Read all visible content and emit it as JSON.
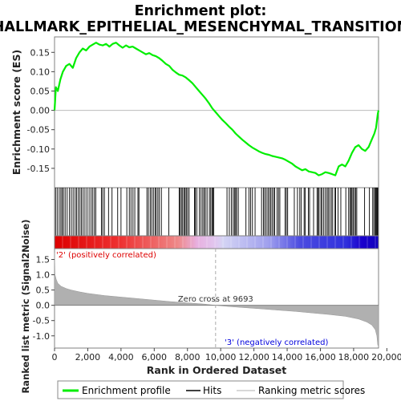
{
  "figure": {
    "title_line1": "Enrichment plot:",
    "title_line2": "HALLMARK_EPITHELIAL_MESENCHYMAL_TRANSITION"
  },
  "colors": {
    "es_curve": "#00ee00",
    "hit_line": "#000000",
    "zero_line": "#bbbbbb",
    "metric_fill": "#b0b0b0",
    "positive_label": "#dd0000",
    "negative_label": "#0000dd",
    "heat_positive": "#e60000",
    "heat_negative": "#1a00cc"
  },
  "chart_data": [
    {
      "type": "line",
      "ylabel": "Enrichment score (ES)",
      "xlim": [
        0,
        19500
      ],
      "ylim": [
        -0.2,
        0.19
      ],
      "yticks": [
        0.15,
        0.1,
        0.05,
        0.0,
        -0.05,
        -0.1,
        -0.15
      ],
      "ytick_labels": [
        "0.15",
        "0.10",
        "0.05",
        "0.00",
        "-0.05",
        "-0.10",
        "-0.15"
      ],
      "grid": false,
      "series": [
        {
          "name": "Enrichment profile",
          "x": [
            0,
            80,
            200,
            350,
            500,
            700,
            900,
            1100,
            1300,
            1500,
            1700,
            1900,
            2100,
            2300,
            2500,
            2700,
            2900,
            3100,
            3300,
            3500,
            3700,
            3900,
            4100,
            4300,
            4500,
            4700,
            4900,
            5100,
            5300,
            5500,
            5700,
            5900,
            6100,
            6300,
            6500,
            6700,
            6900,
            7100,
            7300,
            7500,
            7700,
            7900,
            8100,
            8300,
            8500,
            8700,
            8900,
            9100,
            9300,
            9500,
            9700,
            9900,
            10100,
            10300,
            10500,
            10700,
            10900,
            11100,
            11300,
            11500,
            11700,
            11900,
            12100,
            12300,
            12500,
            12700,
            12900,
            13100,
            13300,
            13500,
            13700,
            13900,
            14100,
            14300,
            14500,
            14700,
            14900,
            15100,
            15300,
            15500,
            15700,
            15900,
            16100,
            16300,
            16500,
            16700,
            16900,
            17100,
            17300,
            17500,
            17700,
            17900,
            18100,
            18300,
            18500,
            18700,
            18900,
            19100,
            19250,
            19350,
            19450,
            19500
          ],
          "y": [
            0.0,
            0.06,
            0.05,
            0.08,
            0.1,
            0.115,
            0.12,
            0.11,
            0.135,
            0.15,
            0.16,
            0.155,
            0.165,
            0.17,
            0.175,
            0.17,
            0.168,
            0.172,
            0.165,
            0.172,
            0.175,
            0.168,
            0.162,
            0.168,
            0.163,
            0.165,
            0.16,
            0.155,
            0.15,
            0.145,
            0.148,
            0.143,
            0.14,
            0.135,
            0.128,
            0.12,
            0.115,
            0.105,
            0.098,
            0.092,
            0.09,
            0.085,
            0.078,
            0.07,
            0.06,
            0.05,
            0.04,
            0.03,
            0.018,
            0.005,
            -0.005,
            -0.015,
            -0.025,
            -0.033,
            -0.042,
            -0.05,
            -0.06,
            -0.068,
            -0.076,
            -0.083,
            -0.09,
            -0.096,
            -0.101,
            -0.106,
            -0.11,
            -0.113,
            -0.115,
            -0.118,
            -0.12,
            -0.122,
            -0.124,
            -0.128,
            -0.133,
            -0.138,
            -0.145,
            -0.15,
            -0.155,
            -0.152,
            -0.158,
            -0.16,
            -0.162,
            -0.168,
            -0.165,
            -0.16,
            -0.162,
            -0.165,
            -0.168,
            -0.145,
            -0.14,
            -0.145,
            -0.13,
            -0.11,
            -0.095,
            -0.09,
            -0.1,
            -0.105,
            -0.095,
            -0.075,
            -0.06,
            -0.045,
            -0.01,
            0.0
          ]
        }
      ]
    },
    {
      "type": "hits",
      "legend_label": "Hits",
      "hit_ranks": [
        60,
        160,
        280,
        380,
        460,
        540,
        640,
        760,
        900,
        1010,
        1120,
        1240,
        1330,
        1430,
        1530,
        1620,
        1720,
        1830,
        1950,
        2080,
        2200,
        2300,
        2400,
        2480,
        2820,
        2900,
        3000,
        3250,
        3460,
        3800,
        4000,
        4350,
        4500,
        4600,
        4720,
        4830,
        5020,
        5080,
        5560,
        5650,
        5760,
        5850,
        5950,
        6050,
        6120,
        6220,
        6310,
        6430,
        6880,
        7500,
        7560,
        7640,
        7710,
        7800,
        7860,
        7930,
        8010,
        8100,
        8420,
        8470,
        8560,
        8720,
        8820,
        8920,
        9000,
        9080,
        9180,
        9320,
        9400,
        9480,
        9520,
        9580,
        10380,
        10520,
        10640,
        10750,
        10830,
        10900,
        10960,
        11060,
        11520,
        11700,
        11800,
        11910,
        12070,
        12460,
        12570,
        12650,
        12740,
        12840,
        12920,
        13010,
        13090,
        13180,
        13250,
        13390,
        13480,
        13560,
        13880,
        13950,
        14030,
        14430,
        14620,
        14760,
        14850,
        15020,
        15080,
        15280,
        15350,
        15590,
        15800,
        15870,
        15920,
        16030,
        16090,
        16200,
        16300,
        16400,
        16470,
        16560,
        16660,
        16740,
        16880,
        16920,
        17060,
        17230,
        17530,
        17700,
        17780,
        17850,
        17900,
        17970,
        18050,
        18120,
        18190,
        18660,
        18950,
        19150,
        19220,
        19300,
        19330,
        19360,
        19410,
        19450
      ]
    },
    {
      "type": "heatmap",
      "positive_label": "'2' (positively correlated)",
      "negative_label": "'3' (negatively correlated)"
    },
    {
      "type": "area",
      "ylabel": "Ranked list metric (Signal2Noise)",
      "xlabel": "Rank in Ordered Dataset",
      "xlim": [
        0,
        19500
      ],
      "ylim": [
        -1.4,
        1.75
      ],
      "xticks": [
        0,
        2000,
        4000,
        6000,
        8000,
        10000,
        12000,
        14000,
        16000,
        18000,
        20000
      ],
      "xtick_labels": [
        "0",
        "2,000",
        "4,000",
        "6,000",
        "8,000",
        "10,000",
        "12,000",
        "14,000",
        "16,000",
        "18,000",
        "20,000"
      ],
      "yticks": [
        1.5,
        1.0,
        0.5,
        0.0,
        -0.5,
        -1.0
      ],
      "ytick_labels": [
        "1.5",
        "1.0",
        "0.5",
        "0.0",
        "-0.5",
        "-1.0"
      ],
      "zero_cross_rank": 9693,
      "zero_cross_label": "Zero cross at 9693",
      "series": [
        {
          "name": "Ranking metric scores",
          "x": [
            0,
            30,
            100,
            200,
            400,
            700,
            1000,
            1500,
            2000,
            3000,
            4000,
            5000,
            6000,
            7000,
            8000,
            9000,
            9693,
            10500,
            11500,
            12500,
            13500,
            14500,
            15500,
            16500,
            17500,
            18300,
            18800,
            19100,
            19300,
            19400,
            19450,
            19500
          ],
          "y": [
            1.72,
            1.0,
            0.85,
            0.72,
            0.62,
            0.55,
            0.5,
            0.44,
            0.39,
            0.32,
            0.27,
            0.22,
            0.17,
            0.12,
            0.08,
            0.04,
            0.0,
            -0.04,
            -0.08,
            -0.12,
            -0.16,
            -0.2,
            -0.25,
            -0.3,
            -0.36,
            -0.45,
            -0.55,
            -0.65,
            -0.8,
            -1.0,
            -1.3,
            -1.35
          ]
        }
      ]
    }
  ],
  "legend": {
    "items": [
      {
        "label": "Enrichment profile",
        "kind": "es"
      },
      {
        "label": "Hits",
        "kind": "hit"
      },
      {
        "label": "Ranking metric scores",
        "kind": "metric"
      }
    ]
  }
}
